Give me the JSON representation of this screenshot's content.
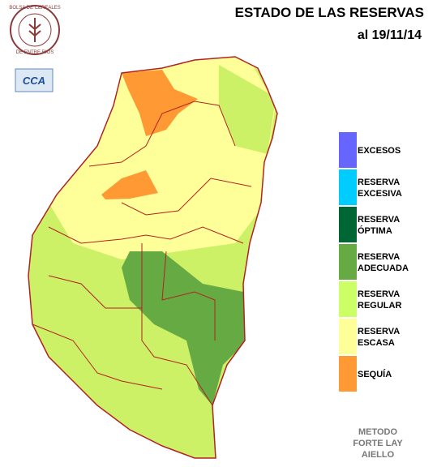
{
  "header": {
    "title": "ESTADO DE LAS RESERVAS",
    "date": "al 19/11/14"
  },
  "logos": {
    "seal_lines": [
      "BOLSA DE CEREALES",
      "DE ENTRE RIOS"
    ],
    "badge": "CCA"
  },
  "legend": [
    {
      "label_lines": [
        "EXCESOS"
      ],
      "color": "#6666ff"
    },
    {
      "label_lines": [
        "RESERVA",
        "EXCESIVA"
      ],
      "color": "#00ccff"
    },
    {
      "label_lines": [
        "RESERVA",
        "ÓPTIMA"
      ],
      "color": "#006633"
    },
    {
      "label_lines": [
        "RESERVA",
        "ADECUADA"
      ],
      "color": "#66aa44"
    },
    {
      "label_lines": [
        "RESERVA",
        "REGULAR"
      ],
      "color": "#ccff66"
    },
    {
      "label_lines": [
        "RESERVA",
        "ESCASA"
      ],
      "color": "#ffff99"
    },
    {
      "label_lines": [
        "SEQUÍA"
      ],
      "color": "#ff9933"
    }
  ],
  "method_lines": [
    "METODO",
    "FORTE LAY",
    "AIELLO"
  ]
}
